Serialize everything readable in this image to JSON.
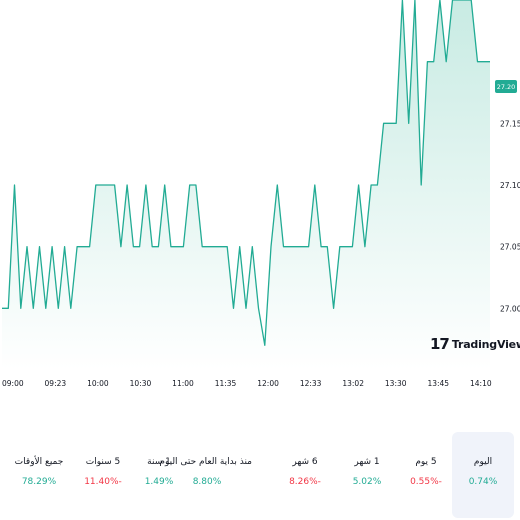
{
  "chart_data": {
    "type": "area",
    "x_ticks": [
      "09:00",
      "09:23",
      "10:00",
      "10:30",
      "11:00",
      "11:35",
      "12:00",
      "12:33",
      "13:02",
      "13:30",
      "13:45",
      "14:10"
    ],
    "y_ticks": [
      "27.00",
      "27.05",
      "27.10",
      "27.15"
    ],
    "ylim": [
      26.95,
      27.25
    ],
    "last_price": "27.20",
    "colors": {
      "line": "#22ab94",
      "fill_top": "#c8ebe3",
      "fill_bottom": "#ffffff",
      "tag": "#22ab94"
    },
    "values": [
      27.0,
      27.0,
      27.1,
      27.0,
      27.05,
      27.0,
      27.05,
      27.0,
      27.05,
      27.0,
      27.05,
      27.0,
      27.05,
      27.05,
      27.05,
      27.1,
      27.1,
      27.1,
      27.1,
      27.05,
      27.1,
      27.05,
      27.05,
      27.1,
      27.05,
      27.05,
      27.1,
      27.05,
      27.05,
      27.05,
      27.1,
      27.1,
      27.05,
      27.05,
      27.05,
      27.05,
      27.05,
      27.0,
      27.05,
      27.0,
      27.05,
      27.0,
      26.97,
      27.05,
      27.1,
      27.05,
      27.05,
      27.05,
      27.05,
      27.05,
      27.1,
      27.05,
      27.05,
      27.0,
      27.05,
      27.05,
      27.05,
      27.1,
      27.05,
      27.1,
      27.1,
      27.15,
      27.15,
      27.15,
      27.25,
      27.15,
      27.25,
      27.1,
      27.2,
      27.2,
      27.25,
      27.2,
      27.25,
      27.25,
      27.25,
      27.25,
      27.2,
      27.2,
      27.2
    ]
  },
  "brand": {
    "mark": "17",
    "name": "TradingView"
  },
  "periods": [
    {
      "label": "اليوم",
      "value": "0.74%",
      "trend": "up",
      "active": true
    },
    {
      "label": "5 يوم",
      "value": "0.55%-",
      "trend": "down",
      "active": false
    },
    {
      "label": "1 شهر",
      "value": "5.02%",
      "trend": "up",
      "active": false
    },
    {
      "label": "6 شهر",
      "value": "8.26%-",
      "trend": "down",
      "active": false
    },
    {
      "label": "منذ بداية العام حتى اليوم",
      "value": "8.80%",
      "trend": "up",
      "active": false
    },
    {
      "label": "1 سنة",
      "value": "1.49%",
      "trend": "up",
      "active": false
    },
    {
      "label": "5 سنوات",
      "value": "11.40%-",
      "trend": "down",
      "active": false
    },
    {
      "label": "جميع الأوقات",
      "value": "78.29%",
      "trend": "up",
      "active": false
    }
  ]
}
